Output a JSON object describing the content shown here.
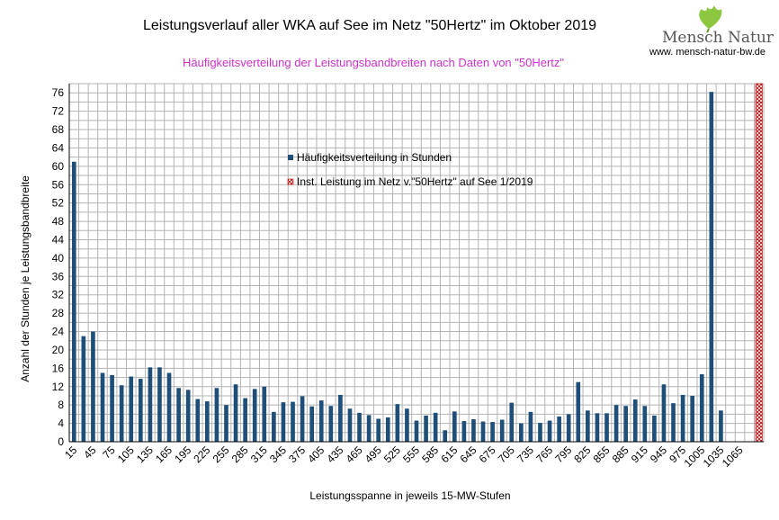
{
  "logo": {
    "text": "Mensch Natur",
    "url": "www. mensch-natur-bw.de"
  },
  "colors": {
    "bar": "#1f4e79",
    "grid": "#b3b3b3",
    "subtitle": "#cc33cc",
    "marker": "#c00000",
    "logo_leaf": "#8dc63f"
  },
  "chart_data": {
    "type": "bar",
    "title": "Leistungsverlauf aller WKA auf See im Netz \"50Hertz\" im Oktober 2019",
    "subtitle": "Häufigkeitsverteilung der Leistungsbandbreiten nach Daten von \"50Hertz\"",
    "xlabel": "Leistungsspanne in jeweils 15-MW-Stufen",
    "ylabel": "Anzahl der Stunden je Leistungsbandbreite",
    "ylim": [
      0,
      78
    ],
    "yticks": [
      0,
      4,
      8,
      12,
      16,
      20,
      24,
      28,
      32,
      36,
      40,
      44,
      48,
      52,
      56,
      60,
      64,
      68,
      72,
      76
    ],
    "xtick_labels": [
      "15",
      "45",
      "75",
      "105",
      "135",
      "165",
      "195",
      "225",
      "255",
      "285",
      "315",
      "345",
      "375",
      "405",
      "435",
      "465",
      "495",
      "525",
      "555",
      "585",
      "615",
      "645",
      "675",
      "705",
      "735",
      "765",
      "795",
      "825",
      "855",
      "885",
      "915",
      "945",
      "975",
      "1005",
      "1035",
      "1065"
    ],
    "legend": {
      "position": "center-top",
      "entries": [
        "Häufigkeitsverteilung in Stunden",
        "Inst. Leistung im Netz v.\"50Hertz\" auf See 1/2019"
      ]
    },
    "series": [
      {
        "name": "Häufigkeitsverteilung in Stunden",
        "values": [
          61,
          23,
          24,
          15,
          14.5,
          12.3,
          14.2,
          13.7,
          16.2,
          16.2,
          15,
          11.7,
          11.3,
          9.3,
          8.8,
          11.7,
          8,
          12.5,
          9.5,
          11.5,
          12,
          6.5,
          8.6,
          8.7,
          9.9,
          7.7,
          9,
          7.8,
          10.2,
          7.2,
          6.3,
          5.8,
          5,
          5.3,
          8.2,
          7.2,
          4.6,
          5.7,
          6.3,
          2.5,
          6.6,
          4.5,
          4.9,
          4.4,
          4.3,
          4.8,
          8.5,
          4,
          6.5,
          4.1,
          4.6,
          5.5,
          6,
          13,
          6.8,
          6.2,
          6.2,
          8,
          7.8,
          9.2,
          7.8,
          5.7,
          12.5,
          8.4,
          10.2,
          10,
          14.7,
          76.2,
          6.8,
          0,
          0,
          0,
          0
        ]
      },
      {
        "name": "Inst. Leistung im Netz v.\"50Hertz\" auf See 1/2019",
        "values": [
          0,
          0,
          0,
          0,
          0,
          0,
          0,
          0,
          0,
          0,
          0,
          0,
          0,
          0,
          0,
          0,
          0,
          0,
          0,
          0,
          0,
          0,
          0,
          0,
          0,
          0,
          0,
          0,
          0,
          0,
          0,
          0,
          0,
          0,
          0,
          0,
          0,
          0,
          0,
          0,
          0,
          0,
          0,
          0,
          0,
          0,
          0,
          0,
          0,
          0,
          0,
          0,
          0,
          0,
          0,
          0,
          0,
          0,
          0,
          0,
          0,
          0,
          0,
          0,
          0,
          0,
          0,
          0,
          0,
          0,
          0,
          0,
          78
        ]
      }
    ]
  }
}
